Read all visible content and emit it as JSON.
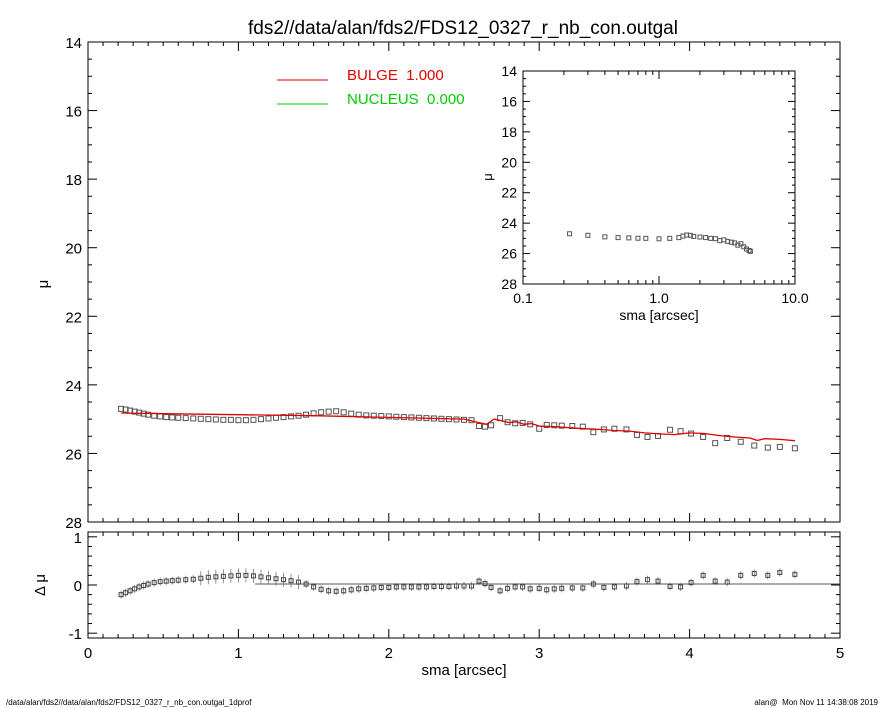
{
  "title": "fds2//data/alan/fds2/FDS12_0327_r_nb_con.outgal",
  "footer_left": "/data/alan/fds2//data/alan/fds2/FDS12_0327_r_nb_con.outgal_1dprof",
  "footer_right": "alan@  Mon Nov 11 14:38:08 2019",
  "colors": {
    "bulge": "#e00000",
    "nucleus": "#00cc00",
    "data": "#555555",
    "axis": "#000000"
  },
  "chart_data": [
    {
      "id": "main-profile",
      "type": "scatter",
      "ylabel": "μ",
      "xlim": [
        0,
        5
      ],
      "ylim": [
        28,
        14
      ],
      "y_inverted": true,
      "yticks": [
        "14",
        "16",
        "18",
        "20",
        "22",
        "24",
        "26",
        "28"
      ],
      "legend": [
        {
          "label": "BULGE  1.000",
          "color": "#e00000"
        },
        {
          "label": "NUCLEUS  0.000",
          "color": "#00cc00"
        }
      ],
      "series": [
        {
          "name": "data",
          "x": [
            0.22,
            0.25,
            0.28,
            0.31,
            0.34,
            0.37,
            0.4,
            0.44,
            0.48,
            0.52,
            0.56,
            0.6,
            0.65,
            0.7,
            0.75,
            0.8,
            0.85,
            0.9,
            0.95,
            1.0,
            1.05,
            1.1,
            1.15,
            1.2,
            1.25,
            1.3,
            1.35,
            1.4,
            1.45,
            1.5,
            1.55,
            1.6,
            1.65,
            1.7,
            1.75,
            1.8,
            1.85,
            1.9,
            1.95,
            2.0,
            2.05,
            2.1,
            2.15,
            2.2,
            2.25,
            2.3,
            2.35,
            2.4,
            2.45,
            2.5,
            2.55,
            2.6,
            2.64,
            2.68,
            2.74,
            2.79,
            2.84,
            2.89,
            2.94,
            3.0,
            3.05,
            3.1,
            3.15,
            3.22,
            3.29,
            3.36,
            3.43,
            3.5,
            3.58,
            3.65,
            3.72,
            3.79,
            3.87,
            3.94,
            4.01,
            4.09,
            4.17,
            4.25,
            4.34,
            4.43,
            4.52,
            4.6,
            4.7
          ],
          "y": [
            24.7,
            24.72,
            24.75,
            24.78,
            24.81,
            24.84,
            24.87,
            24.9,
            24.92,
            24.94,
            24.95,
            24.96,
            24.97,
            24.98,
            24.99,
            25.0,
            25.01,
            25.02,
            25.02,
            25.03,
            25.03,
            25.02,
            25.0,
            24.98,
            24.96,
            24.94,
            24.92,
            24.9,
            24.87,
            24.83,
            24.8,
            24.78,
            24.77,
            24.8,
            24.84,
            24.87,
            24.89,
            24.9,
            24.91,
            24.92,
            24.93,
            24.94,
            24.95,
            24.96,
            24.97,
            24.98,
            24.99,
            25.0,
            25.01,
            25.02,
            25.03,
            25.2,
            25.22,
            25.18,
            24.97,
            25.09,
            25.12,
            25.11,
            25.15,
            25.28,
            25.17,
            25.18,
            25.19,
            25.2,
            25.22,
            25.38,
            25.3,
            25.28,
            25.3,
            25.46,
            25.52,
            25.49,
            25.31,
            25.35,
            25.42,
            25.52,
            25.7,
            25.55,
            25.66,
            25.77,
            25.83,
            25.81,
            25.85
          ]
        },
        {
          "name": "BULGE  1.000",
          "x": [
            0.22,
            0.5,
            1.0,
            1.5,
            2.0,
            2.5,
            2.6,
            2.65,
            2.7,
            2.75,
            2.8,
            2.85,
            2.9,
            2.95,
            3.0,
            3.1,
            3.2,
            3.3,
            3.4,
            3.5,
            3.6,
            3.7,
            3.8,
            3.9,
            4.0,
            4.1,
            4.2,
            4.3,
            4.4,
            4.45,
            4.5,
            4.6,
            4.7
          ],
          "y": [
            24.82,
            24.84,
            24.87,
            24.9,
            24.95,
            25.0,
            25.1,
            25.15,
            25.0,
            25.05,
            25.1,
            25.08,
            25.15,
            25.13,
            25.2,
            25.22,
            25.25,
            25.28,
            25.3,
            25.33,
            25.35,
            25.4,
            25.43,
            25.45,
            25.4,
            25.42,
            25.48,
            25.52,
            25.55,
            25.62,
            25.57,
            25.59,
            25.63
          ]
        }
      ]
    },
    {
      "id": "inset-log",
      "type": "scatter",
      "xlabel": "sma [arcsec]",
      "ylabel": "μ",
      "x_log": true,
      "xlim": [
        0.1,
        10
      ],
      "ylim": [
        28,
        14
      ],
      "xticks": [
        "0.1",
        "1.0",
        "10.0"
      ],
      "yticks": [
        "14",
        "16",
        "18",
        "20",
        "22",
        "24",
        "26",
        "28"
      ],
      "series": [
        {
          "name": "data",
          "x": [
            0.22,
            0.3,
            0.4,
            0.5,
            0.6,
            0.7,
            0.8,
            1.0,
            1.2,
            1.4,
            1.5,
            1.6,
            1.7,
            1.8,
            2.0,
            2.2,
            2.4,
            2.6,
            2.8,
            3.0,
            3.2,
            3.4,
            3.6,
            3.8,
            4.0,
            4.2,
            4.4,
            4.6,
            4.7
          ],
          "y": [
            24.7,
            24.8,
            24.9,
            24.95,
            24.97,
            24.99,
            25.0,
            25.03,
            25.0,
            24.95,
            24.85,
            24.78,
            24.8,
            24.87,
            24.91,
            24.95,
            25.0,
            25.02,
            25.15,
            25.1,
            25.2,
            25.25,
            25.3,
            25.45,
            25.35,
            25.55,
            25.7,
            25.8,
            25.85
          ]
        }
      ]
    },
    {
      "id": "residuals",
      "type": "scatter",
      "xlabel": "sma [arcsec]",
      "ylabel": "Δ μ",
      "xlim": [
        0,
        5
      ],
      "ylim": [
        -1.1,
        1.1
      ],
      "xticks": [
        "0",
        "1",
        "2",
        "3",
        "4",
        "5"
      ],
      "yticks": [
        "-1",
        "0",
        "1"
      ],
      "series": [
        {
          "name": "residual",
          "x": [
            0.22,
            0.25,
            0.28,
            0.31,
            0.34,
            0.37,
            0.4,
            0.44,
            0.48,
            0.52,
            0.56,
            0.6,
            0.65,
            0.7,
            0.75,
            0.8,
            0.85,
            0.9,
            0.95,
            1.0,
            1.05,
            1.1,
            1.15,
            1.2,
            1.25,
            1.3,
            1.35,
            1.4,
            1.45,
            1.5,
            1.55,
            1.6,
            1.65,
            1.7,
            1.75,
            1.8,
            1.85,
            1.9,
            1.95,
            2.0,
            2.05,
            2.1,
            2.15,
            2.2,
            2.25,
            2.3,
            2.35,
            2.4,
            2.45,
            2.5,
            2.55,
            2.6,
            2.64,
            2.68,
            2.74,
            2.79,
            2.84,
            2.89,
            2.94,
            3.0,
            3.05,
            3.1,
            3.15,
            3.22,
            3.29,
            3.36,
            3.43,
            3.5,
            3.58,
            3.65,
            3.72,
            3.79,
            3.87,
            3.94,
            4.01,
            4.09,
            4.17,
            4.25,
            4.34,
            4.43,
            4.52,
            4.6,
            4.7
          ],
          "y": [
            -0.2,
            -0.16,
            -0.12,
            -0.08,
            -0.04,
            -0.01,
            0.02,
            0.05,
            0.07,
            0.08,
            0.09,
            0.1,
            0.11,
            0.12,
            0.14,
            0.16,
            0.17,
            0.18,
            0.19,
            0.2,
            0.2,
            0.19,
            0.17,
            0.15,
            0.13,
            0.11,
            0.09,
            0.06,
            0.02,
            -0.04,
            -0.09,
            -0.12,
            -0.13,
            -0.12,
            -0.1,
            -0.08,
            -0.07,
            -0.06,
            -0.05,
            -0.05,
            -0.04,
            -0.04,
            -0.04,
            -0.04,
            -0.04,
            -0.03,
            -0.03,
            -0.03,
            -0.02,
            -0.02,
            -0.02,
            0.08,
            0.03,
            -0.05,
            -0.12,
            -0.07,
            -0.04,
            -0.04,
            -0.08,
            -0.07,
            -0.1,
            -0.08,
            -0.07,
            -0.06,
            -0.06,
            0.02,
            -0.05,
            -0.04,
            -0.02,
            0.07,
            0.11,
            0.08,
            -0.03,
            -0.04,
            0.05,
            0.2,
            0.08,
            0.06,
            0.2,
            0.24,
            0.2,
            0.26,
            0.22
          ]
        }
      ]
    }
  ]
}
